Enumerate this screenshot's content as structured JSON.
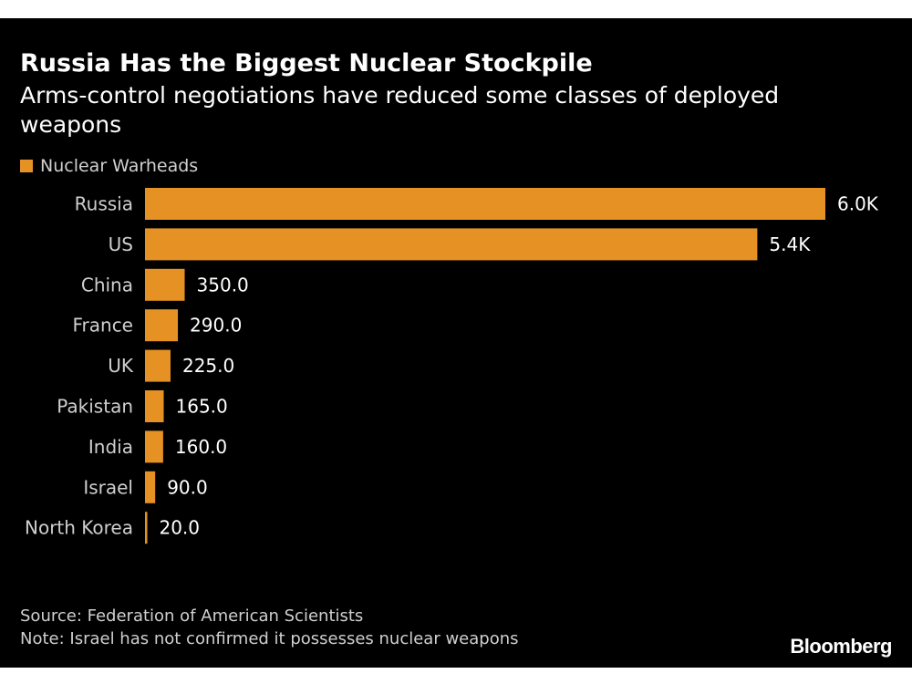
{
  "chart_data": {
    "type": "bar",
    "orientation": "horizontal",
    "title": "Russia Has the Biggest Nuclear Stockpile",
    "subtitle": "Arms-control negotiations have reduced some classes of deployed weapons",
    "legend": [
      {
        "name": "Nuclear Warheads",
        "color": "#e59124"
      }
    ],
    "categories": [
      "Russia",
      "US",
      "China",
      "France",
      "UK",
      "Pakistan",
      "India",
      "Israel",
      "North Korea"
    ],
    "values": [
      6000,
      5400,
      350,
      290,
      225,
      165,
      160,
      90,
      20
    ],
    "value_labels": [
      "6.0K",
      "5.4K",
      "350.0",
      "290.0",
      "225.0",
      "165.0",
      "160.0",
      "90.0",
      "20.0"
    ],
    "xlabel": "",
    "ylabel": "",
    "xlim": [
      0,
      6000
    ],
    "grid": false,
    "legend_position": "top-left"
  },
  "footer": {
    "source": "Source: Federation of American Scientists",
    "note": "Note: Israel has not confirmed it possesses nuclear weapons"
  },
  "brand": "Bloomberg",
  "colors": {
    "bar": "#e59124",
    "background": "#000000"
  }
}
